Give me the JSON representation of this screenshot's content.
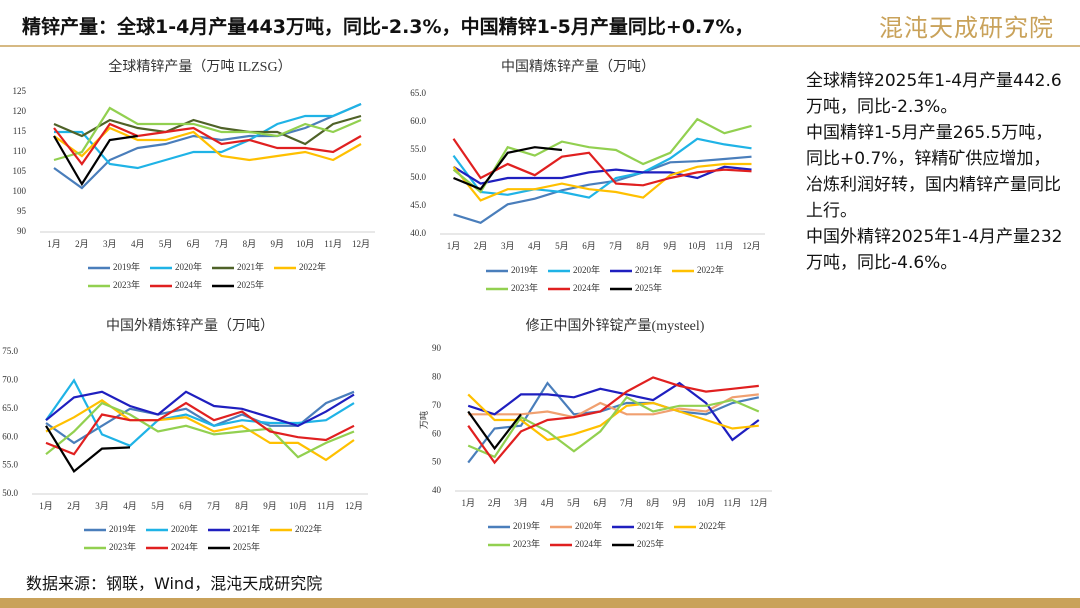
{
  "header": {
    "title": "精锌产量：全球1-4月产量443万吨，同比-2.3%，中国精锌1-5月产量同比+0.7%，",
    "logo": "混沌天成研究院"
  },
  "notes": [
    "全球精锌2025年1-4月产量442.6万吨，同比-2.3%。",
    "中国精锌1-5月产量265.5万吨，同比+0.7%，锌精矿供应增加，冶炼利润好转，国内精锌产量同比上行。",
    "中国外精锌2025年1-4月产量232万吨，同比-4.6%。"
  ],
  "source": "数据来源：钢联，Wind，混沌天成研究院",
  "chart_data": [
    {
      "type": "line",
      "title": "全球精锌产量（万吨 ILZSG）",
      "categories": [
        "1月",
        "2月",
        "3月",
        "4月",
        "5月",
        "6月",
        "7月",
        "8月",
        "9月",
        "10月",
        "11月",
        "12月"
      ],
      "ylim": [
        90,
        125
      ],
      "yticks": [
        90,
        95,
        100,
        105,
        110,
        115,
        120,
        125
      ],
      "series": [
        {
          "name": "2019年",
          "color": "#4a7ebb",
          "values": [
            106,
            101,
            108,
            111,
            112,
            114,
            113,
            114,
            114,
            116,
            119,
            122
          ]
        },
        {
          "name": "2020年",
          "color": "#1fb3e6",
          "values": [
            115,
            115,
            107,
            106,
            108,
            110,
            110,
            113,
            117,
            119,
            119,
            122
          ]
        },
        {
          "name": "2021年",
          "color": "#4f6228",
          "values": [
            117,
            114,
            118,
            116,
            115,
            118,
            116,
            115,
            115,
            112,
            117,
            119
          ]
        },
        {
          "name": "2022年",
          "color": "#ffc000",
          "values": [
            114,
            109,
            116,
            113,
            113,
            115,
            109,
            108,
            109,
            110,
            108,
            112
          ]
        },
        {
          "name": "2023年",
          "color": "#92d050",
          "values": [
            108,
            110,
            121,
            117,
            117,
            117,
            115,
            115,
            114,
            117,
            115,
            118
          ]
        },
        {
          "name": "2024年",
          "color": "#e02020",
          "values": [
            116,
            107,
            117,
            114,
            115,
            116,
            112,
            113,
            111,
            111,
            110,
            114
          ]
        },
        {
          "name": "2025年",
          "color": "#000000",
          "values": [
            114,
            102,
            113,
            114,
            null,
            null,
            null,
            null,
            null,
            null,
            null,
            null
          ]
        }
      ]
    },
    {
      "type": "line",
      "title": "中国精炼锌产量（万吨）",
      "categories": [
        "1月",
        "2月",
        "3月",
        "4月",
        "5月",
        "6月",
        "7月",
        "8月",
        "9月",
        "10月",
        "11月",
        "12月"
      ],
      "ylim": [
        40,
        65
      ],
      "yticks": [
        {
          "value": 40,
          "label": "40.0"
        },
        {
          "value": 45,
          "label": "45.0"
        },
        {
          "value": 50,
          "label": "50.0"
        },
        {
          "value": 55,
          "label": "55.0"
        },
        {
          "value": 60,
          "label": "60.0"
        },
        {
          "value": 65,
          "label": "65.0"
        }
      ],
      "series": [
        {
          "name": "2019年",
          "color": "#4a7ebb",
          "values": [
            43.5,
            42,
            45.3,
            46.3,
            47.8,
            48.8,
            49.5,
            51,
            52.8,
            53,
            53.4,
            53.8
          ]
        },
        {
          "name": "2020年",
          "color": "#1fb3e6",
          "values": [
            54,
            47.5,
            47,
            48,
            47.5,
            46.5,
            50,
            51,
            53.5,
            57,
            56,
            55.3
          ]
        },
        {
          "name": "2021年",
          "color": "#1f1fbf",
          "values": [
            52,
            49,
            50,
            50,
            50,
            51,
            51.5,
            51,
            51,
            50,
            52,
            51.5
          ]
        },
        {
          "name": "2022年",
          "color": "#ffc000",
          "values": [
            52,
            46,
            48,
            48,
            49,
            48,
            47.5,
            46.5,
            50.5,
            52,
            52.5,
            52.5
          ]
        },
        {
          "name": "2023年",
          "color": "#92d050",
          "values": [
            51.5,
            47.5,
            55.5,
            54,
            56.5,
            55.5,
            55,
            52.5,
            54.5,
            60.5,
            58,
            59.3
          ]
        },
        {
          "name": "2024年",
          "color": "#e02020",
          "values": [
            57,
            50,
            52.5,
            50.5,
            53.8,
            54.5,
            49,
            48.7,
            50,
            51,
            51.5,
            51.2
          ]
        },
        {
          "name": "2025年",
          "color": "#000000",
          "values": [
            50,
            48,
            54.5,
            55.5,
            55,
            null,
            null,
            null,
            null,
            null,
            null,
            null
          ]
        }
      ]
    },
    {
      "type": "line",
      "title": "中国外精炼锌产量（万吨）",
      "categories": [
        "1月",
        "2月",
        "3月",
        "4月",
        "5月",
        "6月",
        "7月",
        "8月",
        "9月",
        "10月",
        "11月",
        "12月"
      ],
      "ylim": [
        50,
        75
      ],
      "yticks": [
        {
          "value": 50,
          "label": "50.0"
        },
        {
          "value": 55,
          "label": "55.0"
        },
        {
          "value": 60,
          "label": "60.0"
        },
        {
          "value": 65,
          "label": "65.0"
        },
        {
          "value": 70,
          "label": "70.0"
        },
        {
          "value": 75,
          "label": "75.0"
        }
      ],
      "series": [
        {
          "name": "2019年",
          "color": "#4a7ebb",
          "values": [
            62.5,
            59,
            62,
            65,
            64,
            65,
            62,
            64,
            62,
            62,
            66,
            68
          ]
        },
        {
          "name": "2020年",
          "color": "#1fb3e6",
          "values": [
            63,
            70,
            60.5,
            58.5,
            63,
            64,
            62,
            63,
            62.5,
            62.5,
            63,
            66
          ]
        },
        {
          "name": "2021年",
          "color": "#1f1fbf",
          "values": [
            63,
            67,
            68,
            65.5,
            64,
            68,
            65.5,
            65,
            63.5,
            62,
            64.5,
            67.5
          ]
        },
        {
          "name": "2022年",
          "color": "#ffc000",
          "values": [
            61,
            63.5,
            66.5,
            63,
            63,
            63.5,
            61,
            62,
            59,
            59,
            56,
            59.5
          ]
        },
        {
          "name": "2023年",
          "color": "#92d050",
          "values": [
            57,
            61,
            66,
            64,
            61,
            62,
            60.5,
            61,
            61.5,
            56.5,
            59,
            61
          ]
        },
        {
          "name": "2024年",
          "color": "#e02020",
          "values": [
            59,
            57,
            64,
            63,
            63,
            66,
            63,
            64.5,
            61,
            60,
            59.5,
            62
          ]
        },
        {
          "name": "2025年",
          "color": "#000000",
          "values": [
            62,
            54,
            58,
            58.2,
            null,
            null,
            null,
            null,
            null,
            null,
            null,
            null
          ]
        }
      ]
    },
    {
      "type": "line",
      "title": "修正中国外锌锭产量(mysteel)",
      "ylabel": "万吨",
      "categories": [
        "1月",
        "2月",
        "3月",
        "4月",
        "5月",
        "6月",
        "7月",
        "8月",
        "9月",
        "10月",
        "11月",
        "12月"
      ],
      "ylim": [
        40,
        90
      ],
      "yticks": [
        40,
        50,
        60,
        70,
        80,
        90
      ],
      "series": [
        {
          "name": "2019年",
          "color": "#4a7ebb",
          "values": [
            50,
            62,
            63,
            78,
            67,
            68,
            71,
            71,
            68,
            67,
            71,
            73
          ]
        },
        {
          "name": "2020年",
          "color": "#f0a070",
          "values": [
            67,
            67,
            67,
            68,
            66,
            71,
            67,
            67,
            69,
            68,
            73,
            74
          ]
        },
        {
          "name": "2021年",
          "color": "#1f1fbf",
          "values": [
            70,
            67,
            74,
            74,
            73,
            76,
            74,
            72,
            78,
            71,
            58,
            65
          ]
        },
        {
          "name": "2022年",
          "color": "#ffc000",
          "values": [
            74,
            65,
            65,
            58,
            60,
            63,
            70,
            71,
            68,
            65,
            62,
            63
          ]
        },
        {
          "name": "2023年",
          "color": "#92d050",
          "values": [
            56,
            52,
            66,
            61,
            54,
            61,
            73,
            68,
            70,
            70,
            72,
            68
          ]
        },
        {
          "name": "2024年",
          "color": "#e02020",
          "values": [
            63,
            50,
            61,
            65,
            66,
            68,
            75,
            80,
            77,
            75,
            76,
            77
          ]
        },
        {
          "name": "2025年",
          "color": "#000000",
          "values": [
            68,
            55,
            67,
            null,
            null,
            null,
            null,
            null,
            null,
            null,
            null,
            null
          ]
        }
      ]
    }
  ]
}
